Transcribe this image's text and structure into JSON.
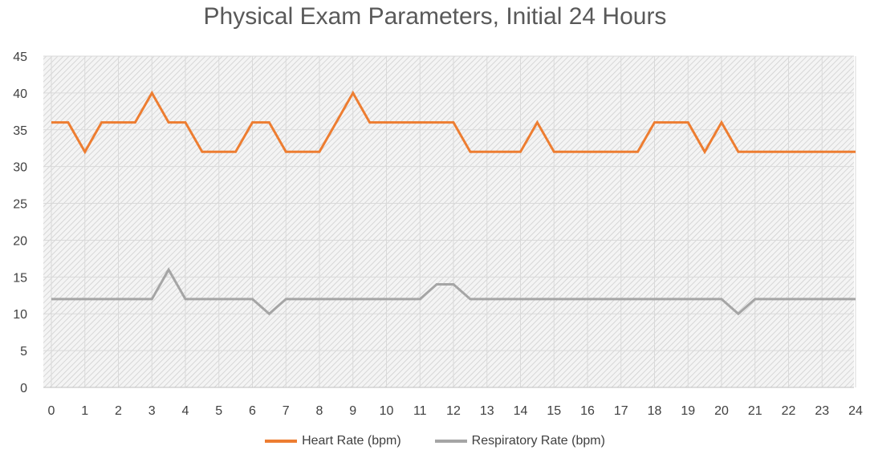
{
  "chart_data": {
    "type": "line",
    "title": "Physical Exam Parameters, Initial 24 Hours",
    "xlabel": "",
    "ylabel": "",
    "xlim": [
      0,
      24
    ],
    "ylim": [
      0,
      45
    ],
    "y_ticks": [
      0,
      5,
      10,
      15,
      20,
      25,
      30,
      35,
      40,
      45
    ],
    "x_ticks": [
      0,
      1,
      2,
      3,
      4,
      5,
      6,
      7,
      8,
      9,
      10,
      11,
      12,
      13,
      14,
      15,
      16,
      17,
      18,
      19,
      20,
      21,
      22,
      23,
      24
    ],
    "grid": true,
    "legend_position": "bottom",
    "x": [
      0,
      0.5,
      1,
      1.5,
      2,
      2.5,
      3,
      3.5,
      4,
      4.5,
      5,
      5.5,
      6,
      6.5,
      7,
      7.5,
      8,
      8.5,
      9,
      9.5,
      10,
      10.5,
      11,
      11.5,
      12,
      12.5,
      13,
      13.5,
      14,
      14.5,
      15,
      15.5,
      16,
      16.5,
      17,
      17.5,
      18,
      18.5,
      19,
      19.5,
      20,
      20.5,
      21,
      21.5,
      22,
      22.5,
      23,
      23.5,
      24
    ],
    "series": [
      {
        "name": "Heart Rate (bpm)",
        "color": "#ED7D31",
        "values": [
          36,
          36,
          32,
          36,
          36,
          36,
          40,
          36,
          36,
          32,
          32,
          32,
          36,
          36,
          32,
          32,
          32,
          36,
          40,
          36,
          36,
          36,
          36,
          36,
          36,
          32,
          32,
          32,
          32,
          36,
          32,
          32,
          32,
          32,
          32,
          32,
          36,
          36,
          36,
          32,
          36,
          32,
          32,
          32,
          32,
          32,
          32,
          32,
          32
        ]
      },
      {
        "name": "Respiratory Rate (bpm)",
        "color": "#A5A5A5",
        "values": [
          12,
          12,
          12,
          12,
          12,
          12,
          12,
          16,
          12,
          12,
          12,
          12,
          12,
          10,
          12,
          12,
          12,
          12,
          12,
          12,
          12,
          12,
          12,
          14,
          14,
          12,
          12,
          12,
          12,
          12,
          12,
          12,
          12,
          12,
          12,
          12,
          12,
          12,
          12,
          12,
          12,
          10,
          12,
          12,
          12,
          12,
          12,
          12,
          12
        ]
      }
    ]
  }
}
